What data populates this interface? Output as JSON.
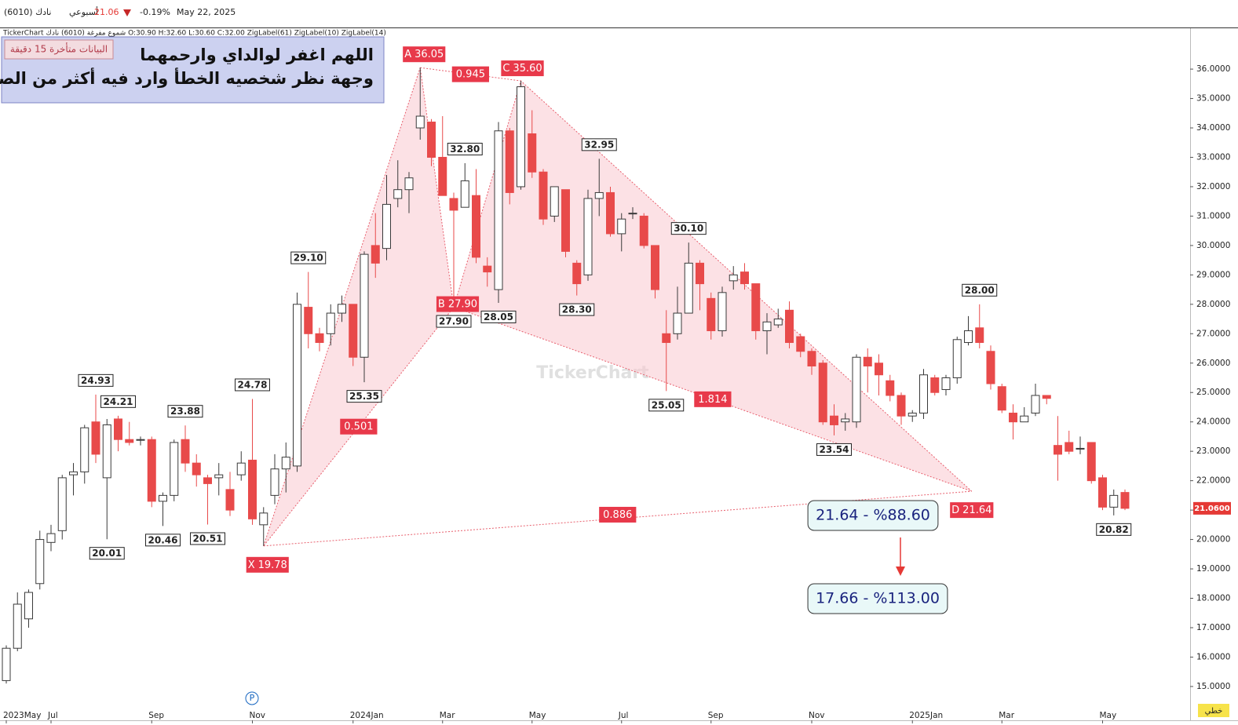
{
  "header": {
    "symbol": "(6010) نادك",
    "period": "أسبوعي",
    "price": 21.06,
    "change": "-0.19%",
    "date": "May 22, 2025",
    "info": "TickerChart شموع مفرغة (6010) نادك  O:30.90  H:32.60  L:30.60  C:32.00  ZigLabel(61)  ZigLabel(10)  ZigLabel(14)"
  },
  "overlay": {
    "delay": "البيانات متأخرة 15 دقيقة",
    "lines": [
      "اللهم اغفر لوالداي وارحمهما",
      "وجهة نظر شخصيه الخطأ وارد فيه أكثر من الصواب"
    ]
  },
  "watermark": "TickerChart",
  "chart_style": "خطي",
  "marker": "P",
  "chart_data": {
    "type": "candlestick",
    "categories": [
      "2023May",
      null,
      null,
      null,
      "Jul",
      null,
      null,
      null,
      null,
      null,
      null,
      null,
      null,
      "Sep",
      null,
      null,
      null,
      null,
      null,
      null,
      null,
      null,
      "Nov",
      null,
      null,
      null,
      null,
      null,
      null,
      null,
      null,
      "2024Jan",
      null,
      null,
      null,
      null,
      null,
      null,
      null,
      "Mar",
      null,
      null,
      null,
      null,
      null,
      null,
      null,
      "May",
      null,
      null,
      null,
      null,
      null,
      null,
      null,
      "Jul",
      null,
      null,
      null,
      null,
      null,
      null,
      null,
      "Sep",
      null,
      null,
      null,
      null,
      null,
      null,
      null,
      null,
      "Nov",
      null,
      null,
      null,
      null,
      null,
      null,
      null,
      null,
      "2025Jan",
      null,
      null,
      null,
      null,
      null,
      null,
      null,
      "Mar",
      null,
      null,
      null,
      null,
      null,
      null,
      null,
      null,
      "May",
      null,
      null
    ],
    "open": [
      15.2,
      16.3,
      17.3,
      18.5,
      19.9,
      20.3,
      22.2,
      22.3,
      24.0,
      22.1,
      24.1,
      23.4,
      23.4,
      23.4,
      21.3,
      21.5,
      23.4,
      22.6,
      22.1,
      22.1,
      21.7,
      22.2,
      22.7,
      20.5,
      21.5,
      22.4,
      22.5,
      27.9,
      27.0,
      27.0,
      27.7,
      28.0,
      26.2,
      30.0,
      29.9,
      31.6,
      31.9,
      34.0,
      34.2,
      33.0,
      31.6,
      31.3,
      31.7,
      29.3,
      28.5,
      33.9,
      32.0,
      33.8,
      32.5,
      31.0,
      31.9,
      29.4,
      29.0,
      31.6,
      31.8,
      30.4,
      31.1,
      31.0,
      30.0,
      27.0,
      27.0,
      27.7,
      29.4,
      28.2,
      27.1,
      28.8,
      29.1,
      28.7,
      27.1,
      27.3,
      27.8,
      26.9,
      26.4,
      26.0,
      24.2,
      24.0,
      24.0,
      26.2,
      26.0,
      25.4,
      24.9,
      24.2,
      24.3,
      25.5,
      25.1,
      25.5,
      26.7,
      27.2,
      26.4,
      25.2,
      24.3,
      24.0,
      24.3,
      24.9,
      23.2,
      23.3,
      23.1,
      23.3,
      22.1,
      21.1,
      21.6
    ],
    "high": [
      16.4,
      18.2,
      18.3,
      20.3,
      20.5,
      22.2,
      22.6,
      23.9,
      24.93,
      24.1,
      24.21,
      24.0,
      23.5,
      23.5,
      21.6,
      23.4,
      23.88,
      22.9,
      22.2,
      22.6,
      22.3,
      23.0,
      24.78,
      21.1,
      22.9,
      23.3,
      28.4,
      29.1,
      27.2,
      28.0,
      28.3,
      28.0,
      29.8,
      31.1,
      32.4,
      32.9,
      32.5,
      36.05,
      34.3,
      34.4,
      31.8,
      32.8,
      32.6,
      29.6,
      34.2,
      34.0,
      35.6,
      34.6,
      32.6,
      32.0,
      31.9,
      29.5,
      31.9,
      32.95,
      32.0,
      31.1,
      31.3,
      31.1,
      30.0,
      27.8,
      28.6,
      30.1,
      29.5,
      28.4,
      28.6,
      29.3,
      29.4,
      28.7,
      27.7,
      27.85,
      28.1,
      27.0,
      26.5,
      26.1,
      24.6,
      24.3,
      26.3,
      26.5,
      26.3,
      25.6,
      25.0,
      24.4,
      25.8,
      25.6,
      25.6,
      26.9,
      27.6,
      28.0,
      26.6,
      25.3,
      24.6,
      24.5,
      25.3,
      24.9,
      24.2,
      23.7,
      23.5,
      23.3,
      22.2,
      21.7,
      21.7
    ],
    "low": [
      15.1,
      16.2,
      17.0,
      18.3,
      19.6,
      20.0,
      21.5,
      21.9,
      22.6,
      20.01,
      23.0,
      23.2,
      23.2,
      21.1,
      20.46,
      21.3,
      22.3,
      21.8,
      20.51,
      21.5,
      20.8,
      22.0,
      20.5,
      19.78,
      21.2,
      21.6,
      22.3,
      26.5,
      26.4,
      26.6,
      27.4,
      25.9,
      25.35,
      28.9,
      29.5,
      31.3,
      31.1,
      33.6,
      32.7,
      31.7,
      27.9,
      31.3,
      29.4,
      28.6,
      28.05,
      31.4,
      31.9,
      32.3,
      30.7,
      30.8,
      29.6,
      28.3,
      28.8,
      31.0,
      30.3,
      29.8,
      30.9,
      29.9,
      28.2,
      25.05,
      26.8,
      27.7,
      27.8,
      26.8,
      26.9,
      28.5,
      28.5,
      26.8,
      26.3,
      27.2,
      26.5,
      26.2,
      25.6,
      23.9,
      23.54,
      23.7,
      23.8,
      25.0,
      24.9,
      24.7,
      23.9,
      24.0,
      24.1,
      24.9,
      24.9,
      25.3,
      26.6,
      26.5,
      25.1,
      24.3,
      23.4,
      24.0,
      24.2,
      24.6,
      22.0,
      22.9,
      22.9,
      21.9,
      21.0,
      20.82,
      21.0
    ],
    "close": [
      16.3,
      17.8,
      18.2,
      20.0,
      20.2,
      22.1,
      22.3,
      23.8,
      22.9,
      23.9,
      23.4,
      23.3,
      23.4,
      21.3,
      21.5,
      23.3,
      22.6,
      22.2,
      21.9,
      22.2,
      21.0,
      22.6,
      20.7,
      20.9,
      22.4,
      22.8,
      28.0,
      27.0,
      26.7,
      27.7,
      28.0,
      26.2,
      29.7,
      29.4,
      31.4,
      31.9,
      32.3,
      34.4,
      33.0,
      31.7,
      31.2,
      32.2,
      29.6,
      29.1,
      33.9,
      31.8,
      35.4,
      32.5,
      30.9,
      32.0,
      29.8,
      28.7,
      31.6,
      31.8,
      30.4,
      30.9,
      31.1,
      30.0,
      28.5,
      26.7,
      27.7,
      29.4,
      28.7,
      27.1,
      28.4,
      29.0,
      28.7,
      27.1,
      27.4,
      27.5,
      26.7,
      26.4,
      25.9,
      24.0,
      23.9,
      24.1,
      26.2,
      25.9,
      25.6,
      24.9,
      24.2,
      24.3,
      25.6,
      25.0,
      25.5,
      26.8,
      27.1,
      26.7,
      25.3,
      24.4,
      24.0,
      24.2,
      24.9,
      24.8,
      22.9,
      23.0,
      23.1,
      22.0,
      21.1,
      21.5,
      21.06
    ],
    "up_color": "#3a3a3a",
    "down_color": "#e84a4a",
    "ylim": [
      13.85,
      37.39
    ],
    "yticks": [
      {
        "value": 15,
        "label": "15.0000"
      },
      {
        "value": 16,
        "label": "16.0000"
      },
      {
        "value": 17,
        "label": "17.0000"
      },
      {
        "value": 18,
        "label": "18.0000"
      },
      {
        "value": 19,
        "label": "19.0000"
      },
      {
        "value": 20,
        "label": "20.0000"
      },
      {
        "value": 21,
        "label": "21.0000"
      },
      {
        "value": 22,
        "label": "22.0000"
      },
      {
        "value": 23,
        "label": "23.0000"
      },
      {
        "value": 24,
        "label": "24.0000"
      },
      {
        "value": 25,
        "label": "25.0000"
      },
      {
        "value": 26,
        "label": "26.0000"
      },
      {
        "value": 27,
        "label": "27.0000"
      },
      {
        "value": 28,
        "label": "28.0000"
      },
      {
        "value": 29,
        "label": "29.0000"
      },
      {
        "value": 30,
        "label": "30.0000"
      },
      {
        "value": 31,
        "label": "31.0000"
      },
      {
        "value": 32,
        "label": "32.0000"
      },
      {
        "value": 33,
        "label": "33.0000"
      },
      {
        "value": 34,
        "label": "34.0000"
      },
      {
        "value": 35,
        "label": "35.0000"
      },
      {
        "value": 36,
        "label": "36.0000"
      }
    ],
    "last_price": {
      "value": 21.06,
      "label": "21.0600"
    },
    "zigzag_labels": [
      24.93,
      20.01,
      24.21,
      20.46,
      23.88,
      20.51,
      24.78,
      {
        "value": 29.1,
        "label": "29.10"
      },
      25.35,
      {
        "value": 32.8,
        "label": "32.80"
      },
      {
        "value": 27.9,
        "label": "27.90"
      },
      28.05,
      {
        "value": 28.3,
        "label": "28.30"
      },
      32.95,
      {
        "value": 30.1,
        "label": "30.10"
      },
      25.05,
      23.54,
      {
        "value": 28,
        "label": "28.00"
      },
      20.82
    ],
    "harmonic": {
      "color": "#e8606e",
      "fill": "#f9c9d0",
      "points": [
        {
          "name": "X",
          "value": 19.78
        },
        {
          "name": "A",
          "value": 36.05
        },
        {
          "name": "B",
          "value": 27.9,
          "label": "27.90"
        },
        {
          "name": "C",
          "value": 35.6,
          "label": "35.60"
        },
        {
          "name": "D",
          "value": 21.64
        }
      ],
      "ratios": [
        0.945,
        0.501,
        1.814,
        0.886
      ]
    },
    "targets": [
      "21.64 - %88.60",
      "17.66 - %113.00"
    ]
  }
}
